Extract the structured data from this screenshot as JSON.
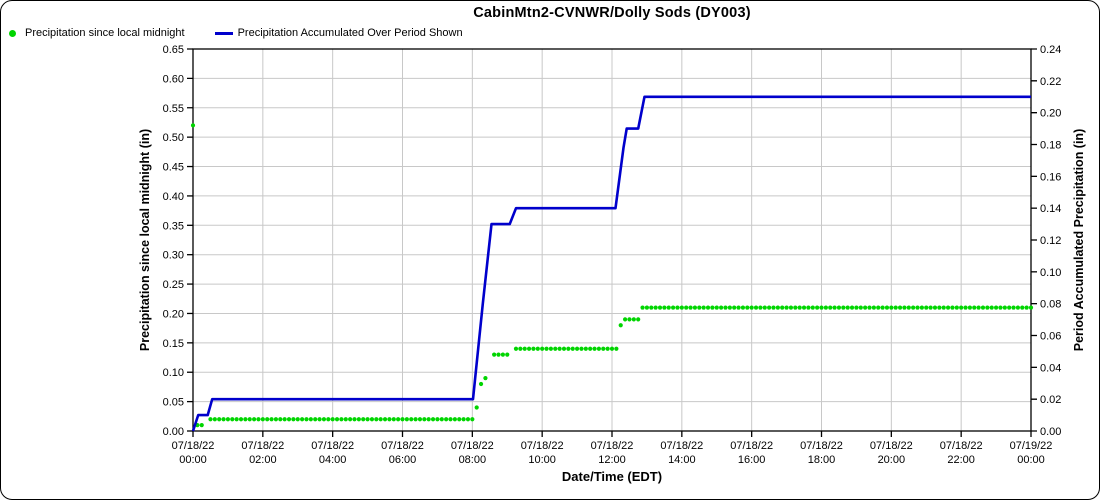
{
  "chart_data": {
    "type": "line",
    "title": "CabinMtn2-CVNWR/Dolly Sods (DY003)",
    "xlabel": "Date/Time (EDT)",
    "grid_color": "#c8c8c8",
    "axis_color": "#000000",
    "x_range_hours": [
      0,
      24
    ],
    "x_ticks": [
      {
        "date": "07/18/22",
        "time": "00:00"
      },
      {
        "date": "07/18/22",
        "time": "02:00"
      },
      {
        "date": "07/18/22",
        "time": "04:00"
      },
      {
        "date": "07/18/22",
        "time": "06:00"
      },
      {
        "date": "07/18/22",
        "time": "08:00"
      },
      {
        "date": "07/18/22",
        "time": "10:00"
      },
      {
        "date": "07/18/22",
        "time": "12:00"
      },
      {
        "date": "07/18/22",
        "time": "14:00"
      },
      {
        "date": "07/18/22",
        "time": "16:00"
      },
      {
        "date": "07/18/22",
        "time": "18:00"
      },
      {
        "date": "07/18/22",
        "time": "20:00"
      },
      {
        "date": "07/18/22",
        "time": "22:00"
      },
      {
        "date": "07/19/22",
        "time": "00:00"
      }
    ],
    "left_axis": {
      "label": "Precipitation since local midnight (in)",
      "min": 0.0,
      "max": 0.65,
      "step": 0.05,
      "decimals": 2
    },
    "right_axis": {
      "label": "Period Accumulated Precipitation (in)",
      "min": 0.0,
      "max": 0.24,
      "step": 0.02,
      "decimals": 2
    },
    "series": [
      {
        "name": "Precipitation since local midnight",
        "axis": "left",
        "style": "scatter",
        "color": "#00d500",
        "dot_radius": 2.1,
        "cadence_hours": 0.125,
        "outlier_points": [
          {
            "t": 0.0,
            "v": 0.52
          }
        ],
        "segments": [
          {
            "t0": 0.125,
            "t1": 0.25,
            "v": 0.01
          },
          {
            "t0": 0.5,
            "t1": 8.0,
            "v": 0.02
          },
          {
            "t0": 8.125,
            "t1": 8.125,
            "v": 0.04
          },
          {
            "t0": 8.25,
            "t1": 8.25,
            "v": 0.08
          },
          {
            "t0": 8.375,
            "t1": 8.375,
            "v": 0.09
          },
          {
            "t0": 8.625,
            "t1": 9.0,
            "v": 0.13
          },
          {
            "t0": 9.25,
            "t1": 12.125,
            "v": 0.14
          },
          {
            "t0": 12.25,
            "t1": 12.25,
            "v": 0.18
          },
          {
            "t0": 12.375,
            "t1": 12.75,
            "v": 0.19
          },
          {
            "t0": 12.875,
            "t1": 24.0,
            "v": 0.21
          }
        ]
      },
      {
        "name": "Precipitation Accumulated Over Period Shown",
        "axis": "right",
        "style": "line",
        "color": "#0000cc",
        "line_width": 2.6,
        "points": [
          [
            0.0,
            0.0
          ],
          [
            0.15,
            0.01
          ],
          [
            0.42,
            0.01
          ],
          [
            0.55,
            0.02
          ],
          [
            8.02,
            0.02
          ],
          [
            8.3,
            0.08
          ],
          [
            8.55,
            0.13
          ],
          [
            9.07,
            0.13
          ],
          [
            9.25,
            0.14
          ],
          [
            12.1,
            0.14
          ],
          [
            12.33,
            0.178
          ],
          [
            12.42,
            0.19
          ],
          [
            12.75,
            0.19
          ],
          [
            12.93,
            0.21
          ],
          [
            24.0,
            0.21
          ]
        ]
      }
    ]
  }
}
